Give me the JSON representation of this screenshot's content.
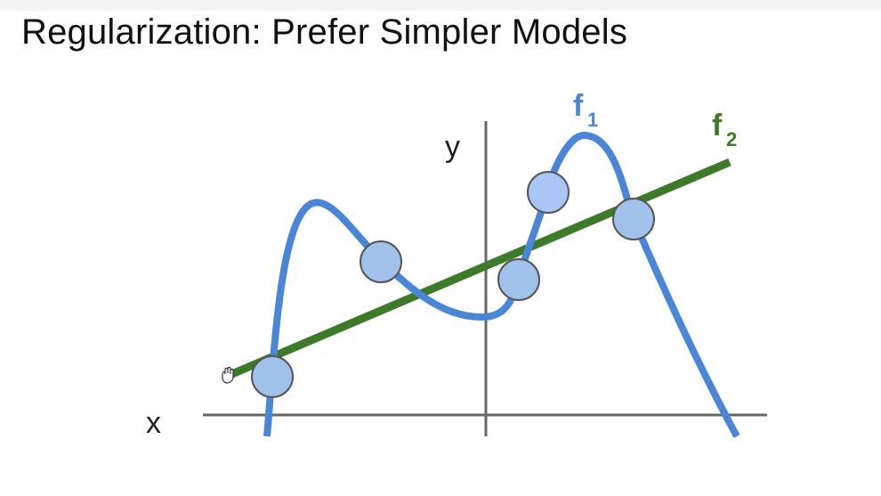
{
  "slide": {
    "title": "Regularization: Prefer Simpler Models"
  },
  "axes": {
    "x_label": "x",
    "y_label": "y"
  },
  "curves": {
    "f1": {
      "letter": "f",
      "subscript": "1",
      "color": "#4a86d8"
    },
    "f2": {
      "letter": "f",
      "subscript": "2",
      "color": "#3d7a2a"
    }
  },
  "points": {
    "fill": "#9fc1ea",
    "stroke": "#555555",
    "highlight_fill": "#a9c6f5"
  },
  "axis_color": "#666666",
  "cursor_icon": "hand-cursor-icon"
}
